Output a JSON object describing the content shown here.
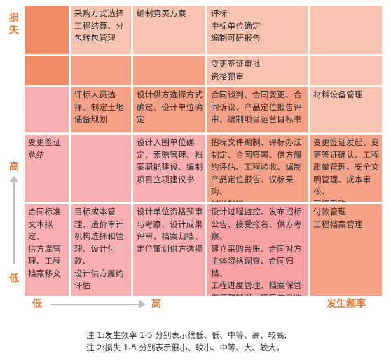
{
  "y_axis": {
    "top_label": "损失",
    "mid_label": "高",
    "bottom_label": "低"
  },
  "x_axis": {
    "left_label": "低",
    "mid_label": "高",
    "title": "发生频率"
  },
  "matrix": {
    "row1": {
      "c2": "采购方式选择\n工程结算、分\n包转包管理",
      "c3": "编制竞买方案",
      "c4": "评标\n中标单位确定\n编制可研报告",
      "c5": ""
    },
    "row2": {
      "c4": "变更签证审批\n资格预审"
    },
    "row3": {
      "c2": "评标人员选\n择、制定土地\n储备规划",
      "c3": "设计供方选择方式\n确定、设计单位确定",
      "c4": "合同谈判、合同变更、合\n同诉讼、产品定位报告评\n审、编制项目运营目标书",
      "c5": "材料设备管理"
    },
    "row4": {
      "c1": "变更签证\n总结",
      "c3": "设计入围单位确\n定、索赔管理、档\n案职能建设、编制\n项目立项建议书",
      "c4": "招标文件编制、评标办法\n制定、合同签署、供方履\n约评估、工程验收、编制\n产品定位报告、议标采购、\n材料封样",
      "c5": "变更签证发起、变\n更签证确认、工程\n质量管理、安全文\n明管理、成本审核、\n直接采购"
    },
    "row5": {
      "c1": "合同标准\n文本拟定、\n供方库管\n理、工程\n档案移交",
      "c2": "目标成本管\n理、造价审计\n机构选择和管\n理、设计付款、\n设计供方履约\n评估",
      "c3": "设计单位资格预审\n与考察、设计成果\n评审、档案归档、\n定位策划供方选择",
      "c4": "设计过程监控、发布招标\n公告、接受报名、供方考察、\n建立采购台账、合同对方\n主体资格调查、合同归档、\n工程进度管理、档案保管\n借阅和销毁、项目信息收\n集、合同确定",
      "c5": "付款管理\n工程档案管理"
    }
  },
  "notes": {
    "n1": "注 1:发生频率 1-5 分别表示很低、低、中等、高、较高;",
    "n2": "注 2:损失 1-5 分别表示很小、较小、中等、大、较大。"
  }
}
